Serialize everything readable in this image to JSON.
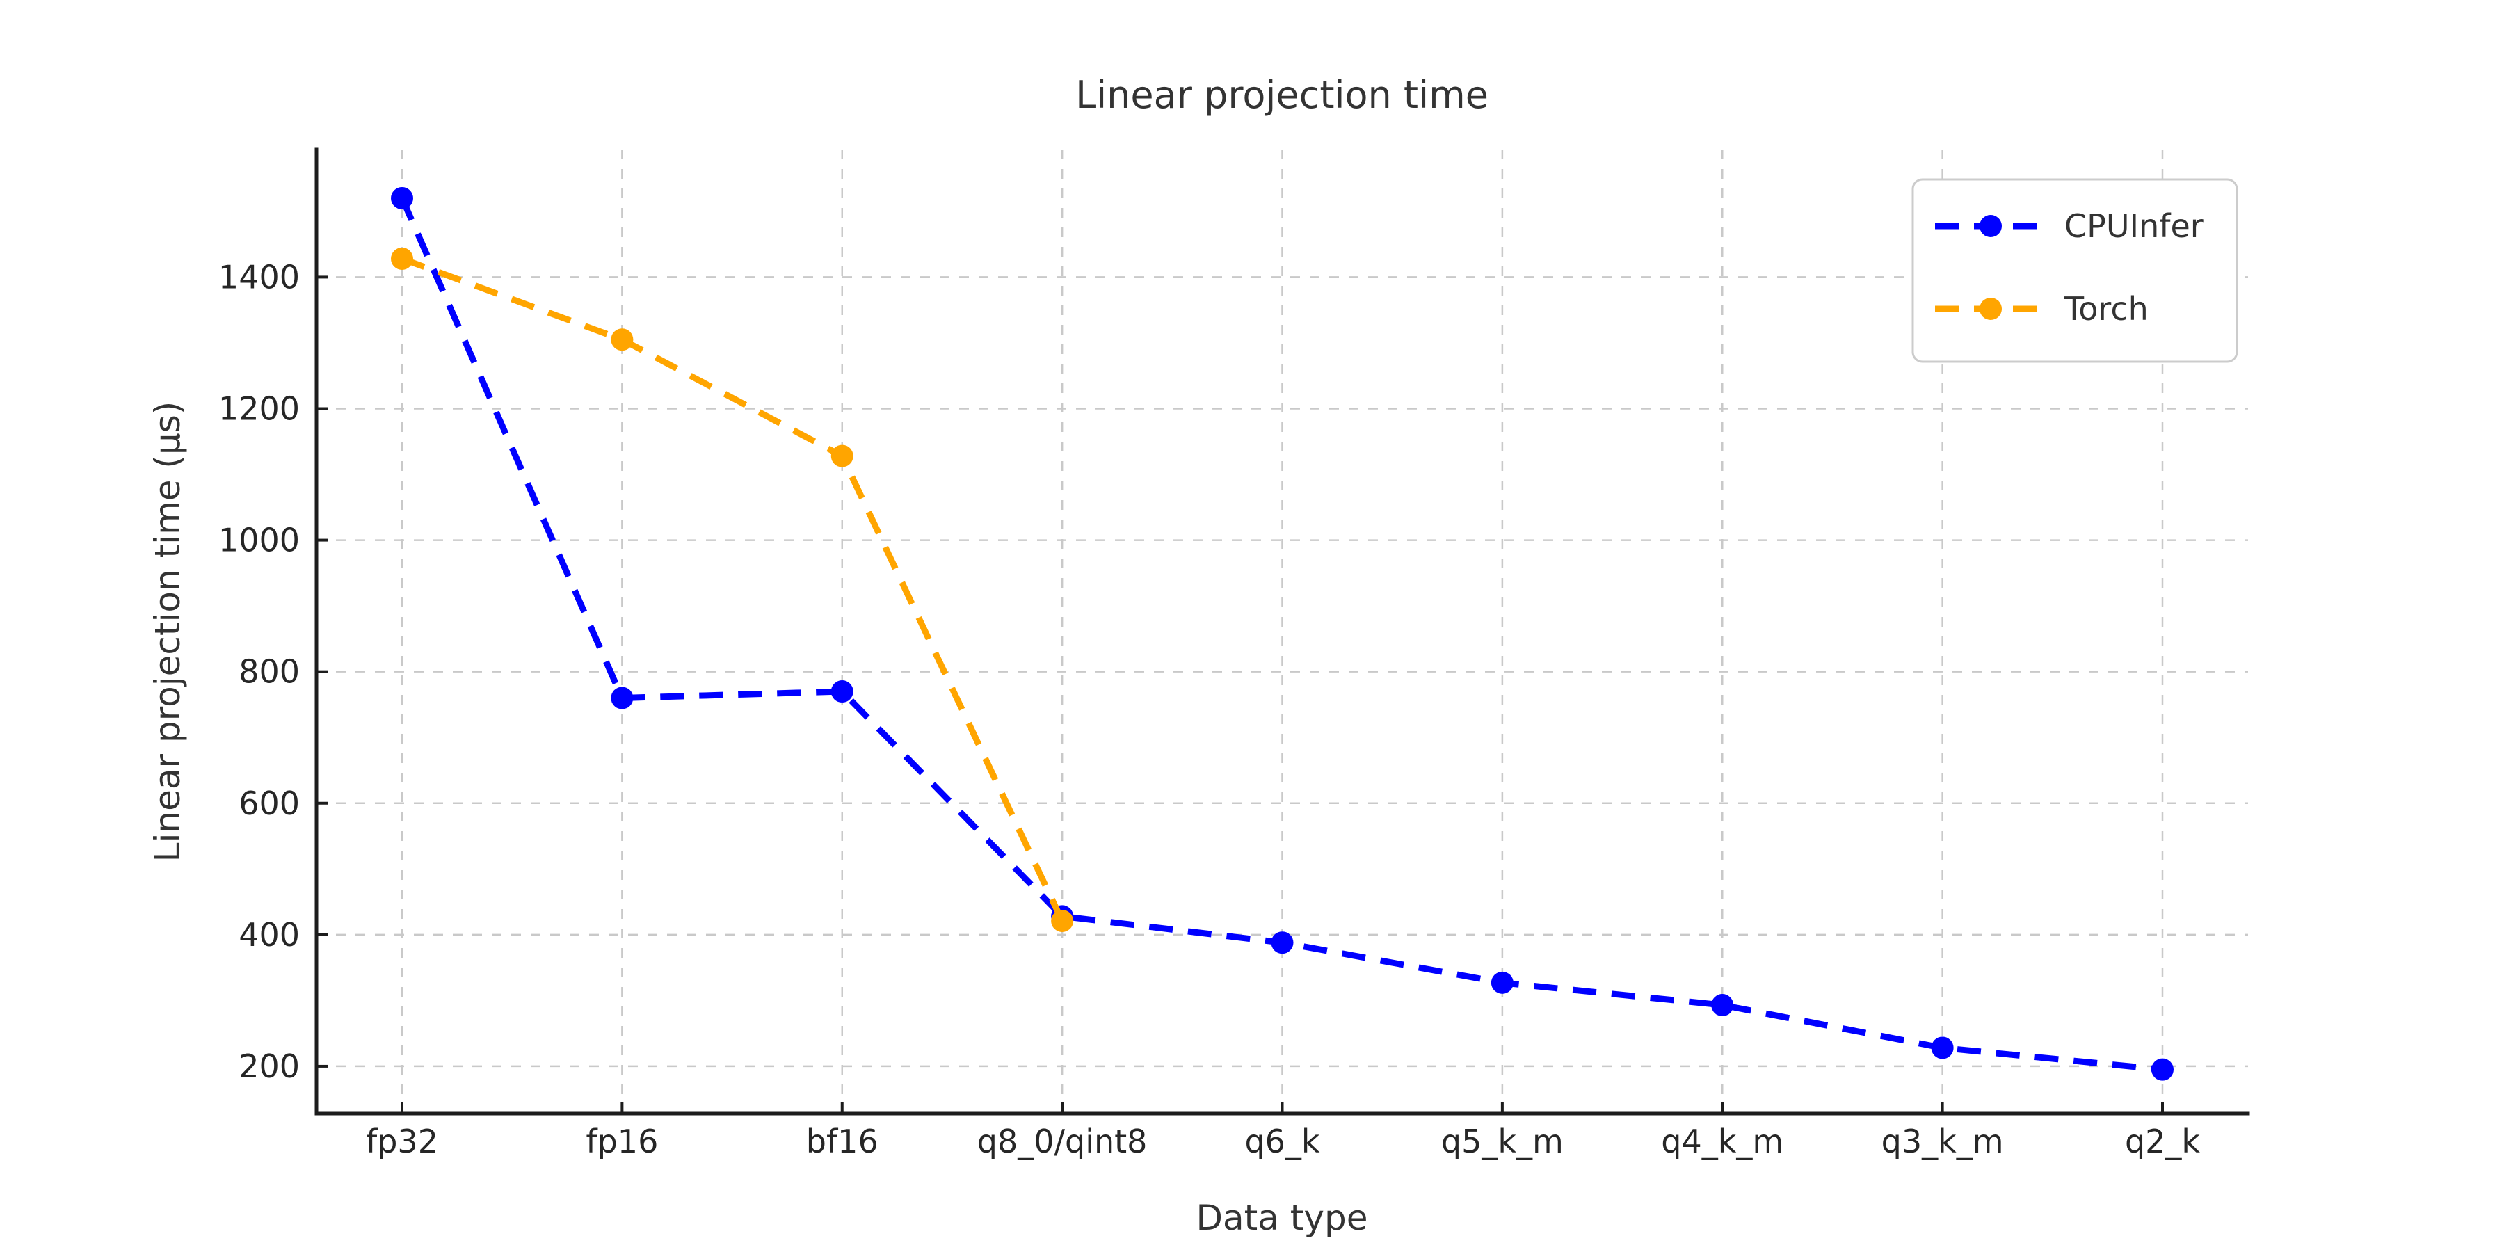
{
  "chart_data": {
    "type": "line",
    "title": "Linear projection time",
    "xlabel": "Data type",
    "ylabel": "Linear projection time (µs)",
    "categories": [
      "fp32",
      "fp16",
      "bf16",
      "q8_0/qint8",
      "q6_k",
      "q5_k_m",
      "q4_k_m",
      "q3_k_m",
      "q2_k"
    ],
    "series": [
      {
        "name": "CPUInfer",
        "color": "#0000ff",
        "values": [
          1520,
          760,
          770,
          428,
          388,
          327,
          293,
          228,
          195
        ]
      },
      {
        "name": "Torch",
        "color": "#ffa500",
        "values": [
          1428,
          1305,
          1128,
          421
        ]
      }
    ],
    "ylim": [
      128,
      1594
    ],
    "yticks": [
      200,
      400,
      600,
      800,
      1000,
      1200,
      1400
    ],
    "grid": true,
    "grid_style": "dashed",
    "line_style": "dashed",
    "marker": "circle",
    "legend_position": "upper right",
    "text_color": "#333333",
    "grid_color": "#c9c9c9",
    "background": "#ffffff"
  }
}
